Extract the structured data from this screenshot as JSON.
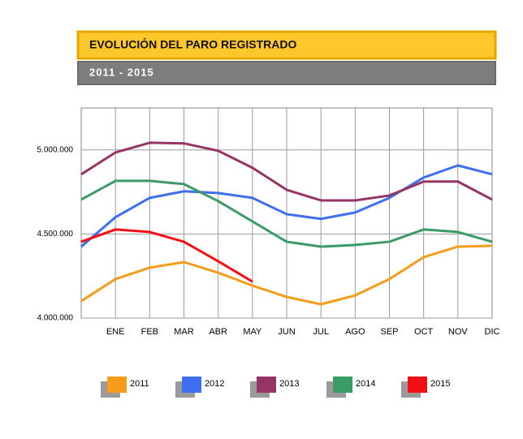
{
  "chart_data": {
    "type": "line",
    "title": "EVOLUCIÓN DEL PARO REGISTRADO",
    "subtitle": "2011 - 2015",
    "categories": [
      null,
      "ENE",
      "FEB",
      "MAR",
      "ABR",
      "MAY",
      "JUN",
      "JUL",
      "AGO",
      "SEP",
      "OCT",
      "NOV",
      "DIC"
    ],
    "ylim": [
      4000000,
      5250000
    ],
    "yticks": [
      {
        "value": 4000000,
        "label": "4.000.000"
      },
      {
        "value": 4500000,
        "label": "4.500.000"
      },
      {
        "value": 5000000,
        "label": "5.000.000"
      }
    ],
    "grid": true,
    "legend": "bottom",
    "series": [
      {
        "name": "2011",
        "color": "#f59c1a",
        "values": [
          4101000,
          4232000,
          4300000,
          4333000,
          4270000,
          4193000,
          4126000,
          4082000,
          4135000,
          4232000,
          4362000,
          4425000,
          4430000
        ]
      },
      {
        "name": "2012",
        "color": "#3f6ff0",
        "values": [
          4425000,
          4600000,
          4715000,
          4754000,
          4744000,
          4715000,
          4618000,
          4590000,
          4628000,
          4715000,
          4836000,
          4908000,
          4855000
        ]
      },
      {
        "name": "2013",
        "color": "#963465",
        "values": [
          4855000,
          4985000,
          5043000,
          5039000,
          4995000,
          4894000,
          4763000,
          4700000,
          4700000,
          4729000,
          4812000,
          4812000,
          4705000
        ]
      },
      {
        "name": "2014",
        "color": "#3a9b66",
        "values": [
          4705000,
          4816000,
          4816000,
          4797000,
          4696000,
          4575000,
          4454000,
          4425000,
          4435000,
          4454000,
          4527000,
          4512000,
          4454000
        ]
      },
      {
        "name": "2015",
        "color": "#f20f16",
        "values": [
          4454000,
          4527000,
          4512000,
          4454000,
          4338000,
          4217000,
          null,
          null,
          null,
          null,
          null,
          null,
          null
        ]
      }
    ]
  }
}
